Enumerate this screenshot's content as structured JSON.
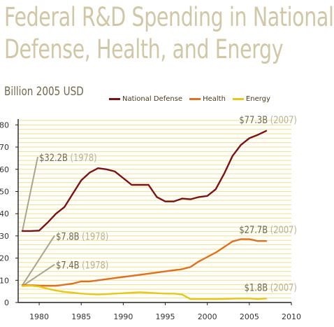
{
  "chart_data": {
    "type": "line",
    "title": "Federal R&D Spending in National Defense, Health, and Energy",
    "title_lines": [
      "Federal R&D Spending in National",
      "Defense, Health, and Energy"
    ],
    "ylabel": "Billion 2005 USD",
    "xlim": [
      1977.5,
      2010
    ],
    "ylim": [
      0,
      82
    ],
    "xticks": [
      1980,
      1985,
      1990,
      1995,
      2000,
      2005,
      2010
    ],
    "yticks": [
      0,
      10,
      20,
      30,
      40,
      50,
      60,
      70,
      80
    ],
    "grid": "horizontal",
    "legend": "top",
    "colors": {
      "National Defense": "#7b1214",
      "Health": "#e0701e",
      "Energy": "#e6c818",
      "grid": "#efe18e",
      "axis": "#222222",
      "annotation": "#b3ad8e",
      "callout_line": "#aaa48a"
    },
    "series": [
      {
        "name": "National Defense",
        "x": [
          1978,
          1979,
          1980,
          1981,
          1982,
          1983,
          1984,
          1985,
          1986,
          1987,
          1988,
          1989,
          1990,
          1991,
          1992,
          1993,
          1994,
          1995,
          1996,
          1997,
          1998,
          1999,
          2000,
          2001,
          2002,
          2003,
          2004,
          2005,
          2006,
          2007
        ],
        "values": [
          32.2,
          32.2,
          32.4,
          36.0,
          40.0,
          43.0,
          49.0,
          55.0,
          58.5,
          60.5,
          60.0,
          59.0,
          56.0,
          53.0,
          53.0,
          53.0,
          47.5,
          45.5,
          45.5,
          46.8,
          46.5,
          47.5,
          48.0,
          51.0,
          58.0,
          66.0,
          71.0,
          74.0,
          75.5,
          77.3
        ]
      },
      {
        "name": "Health",
        "x": [
          1978,
          1979,
          1980,
          1981,
          1982,
          1983,
          1984,
          1985,
          1986,
          1987,
          1988,
          1989,
          1990,
          1991,
          1992,
          1993,
          1994,
          1995,
          1996,
          1997,
          1998,
          1999,
          2000,
          2001,
          2002,
          2003,
          2004,
          2005,
          2006,
          2007
        ],
        "values": [
          7.8,
          7.8,
          7.6,
          7.5,
          7.5,
          8.0,
          8.5,
          9.5,
          9.5,
          10.0,
          10.5,
          11.0,
          11.5,
          12.0,
          12.5,
          13.0,
          13.5,
          14.0,
          14.5,
          15.0,
          16.0,
          18.5,
          20.5,
          22.5,
          25.0,
          27.5,
          28.5,
          28.5,
          27.7,
          27.7
        ]
      },
      {
        "name": "Energy",
        "x": [
          1978,
          1979,
          1980,
          1981,
          1982,
          1983,
          1984,
          1985,
          1986,
          1987,
          1988,
          1989,
          1990,
          1991,
          1992,
          1993,
          1994,
          1995,
          1996,
          1997,
          1998,
          1999,
          2000,
          2001,
          2002,
          2003,
          2004,
          2005,
          2006,
          2007
        ],
        "values": [
          7.4,
          7.6,
          7.2,
          6.2,
          5.4,
          4.8,
          4.4,
          4.0,
          3.8,
          3.6,
          3.8,
          4.0,
          4.2,
          4.4,
          4.6,
          4.4,
          4.2,
          4.0,
          4.0,
          3.6,
          1.5,
          1.5,
          1.5,
          1.5,
          1.6,
          1.7,
          1.8,
          1.8,
          1.5,
          1.8
        ]
      }
    ],
    "annotations": [
      {
        "series": "National Defense",
        "value_text": "$32.2B",
        "year_text": "(1978)",
        "anchor_x": 1978,
        "anchor_y": 32.2,
        "label_x": 1980,
        "label_y": 65
      },
      {
        "series": "Health",
        "value_text": "$7.8B",
        "year_text": "(1978)",
        "anchor_x": 1978,
        "anchor_y": 7.8,
        "label_x": 1982,
        "label_y": 29.5
      },
      {
        "series": "Energy",
        "value_text": "$7.4B",
        "year_text": "(1978)",
        "anchor_x": 1978,
        "anchor_y": 7.4,
        "label_x": 1982,
        "label_y": 16.5
      },
      {
        "series": "National Defense",
        "value_text": "$77.3B",
        "year_text": "(2007)",
        "label_x": 2007,
        "label_y": 82
      },
      {
        "series": "Health",
        "value_text": "$27.7B",
        "year_text": "(2007)",
        "label_x": 2007,
        "label_y": 32.5
      },
      {
        "series": "Energy",
        "value_text": "$1.8B",
        "year_text": "(2007)",
        "label_x": 2007,
        "label_y": 6.5
      }
    ]
  }
}
